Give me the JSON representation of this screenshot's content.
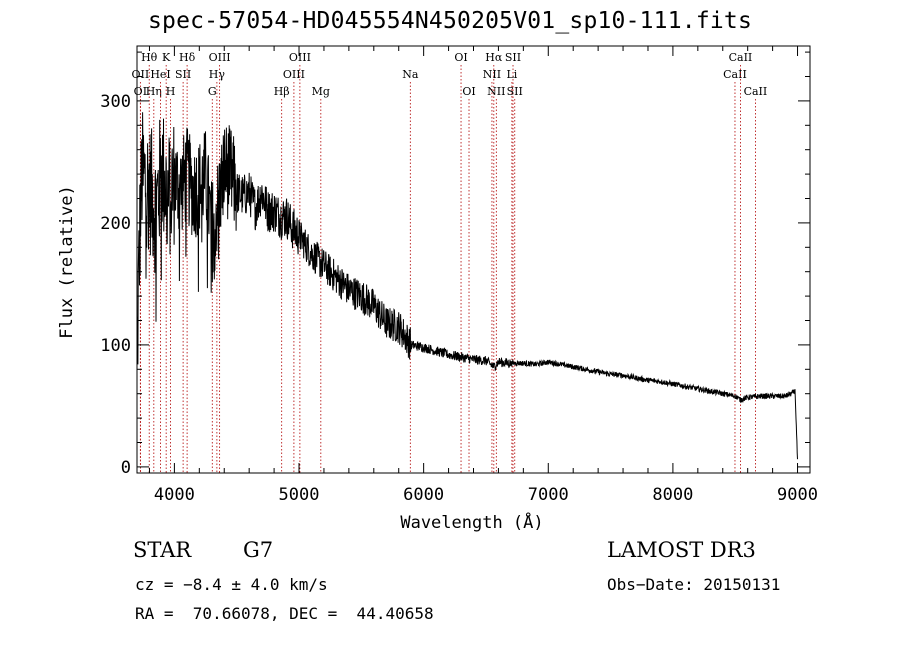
{
  "chart_data": {
    "type": "line",
    "title": "spec-57054-HD045554N450205V01_sp10-111.fits",
    "xlabel": "Wavelength (Å)",
    "ylabel": "Flux (relative)",
    "xlim": [
      3700,
      9100
    ],
    "ylim": [
      -5,
      345
    ],
    "xticks": [
      4000,
      5000,
      6000,
      7000,
      8000,
      9000
    ],
    "xtick_labels": [
      "4000",
      "5000",
      "6000",
      "7000",
      "8000",
      "9000"
    ],
    "yticks": [
      0,
      100,
      200,
      300
    ],
    "ytick_labels": [
      "0",
      "100",
      "200",
      "300"
    ],
    "series": [
      {
        "name": "flux",
        "x": [
          3700,
          3712,
          3725,
          3740,
          3760,
          3800,
          3850,
          3900,
          3950,
          4000,
          4050,
          4100,
          4150,
          4200,
          4250,
          4300,
          4350,
          4400,
          4450,
          4500,
          4550,
          4600,
          4650,
          4700,
          4750,
          4800,
          4850,
          4900,
          4950,
          5000,
          5100,
          5200,
          5300,
          5400,
          5500,
          5600,
          5700,
          5800,
          5900,
          6000,
          6100,
          6200,
          6300,
          6400,
          6500,
          6563,
          6600,
          6700,
          6800,
          6900,
          7000,
          7100,
          7200,
          7300,
          7400,
          7500,
          7600,
          7700,
          7800,
          7900,
          8000,
          8100,
          8200,
          8300,
          8400,
          8500,
          8542,
          8600,
          8700,
          8800,
          8900,
          8950,
          8980,
          9000
        ],
        "y": [
          70,
          150,
          200,
          240,
          235,
          230,
          210,
          245,
          220,
          235,
          228,
          240,
          225,
          230,
          238,
          195,
          215,
          245,
          240,
          225,
          222,
          225,
          212,
          225,
          210,
          210,
          205,
          205,
          195,
          190,
          175,
          165,
          155,
          145,
          140,
          132,
          118,
          115,
          100,
          98,
          95,
          92,
          90,
          88,
          87,
          82,
          86,
          85,
          85,
          84,
          86,
          84,
          82,
          80,
          78,
          76,
          75,
          73,
          71,
          70,
          68,
          66,
          64,
          62,
          60,
          58,
          55,
          57,
          58,
          58,
          58,
          60,
          62,
          5
        ]
      }
    ],
    "line_markers": [
      {
        "label": "OII",
        "wavelength": 3727,
        "row": 2
      },
      {
        "label": "Hθ",
        "wavelength": 3798,
        "row": 1
      },
      {
        "label": "OI",
        "wavelength": 3727,
        "row": 3
      },
      {
        "label": "Hη",
        "wavelength": 3835,
        "row": 3
      },
      {
        "label": "HeI",
        "wavelength": 3889,
        "row": 2
      },
      {
        "label": "K",
        "wavelength": 3934,
        "row": 1
      },
      {
        "label": "H",
        "wavelength": 3969,
        "row": 3
      },
      {
        "label": "SII",
        "wavelength": 4070,
        "row": 2
      },
      {
        "label": "Hδ",
        "wavelength": 4102,
        "row": 1
      },
      {
        "label": "OIII",
        "wavelength": 4363,
        "row": 1
      },
      {
        "label": "Hγ",
        "wavelength": 4341,
        "row": 2
      },
      {
        "label": "G",
        "wavelength": 4304,
        "row": 3
      },
      {
        "label": "Hβ",
        "wavelength": 4861,
        "row": 3
      },
      {
        "label": "OIII",
        "wavelength": 4959,
        "row": 2
      },
      {
        "label": "OIII",
        "wavelength": 5007,
        "row": 1
      },
      {
        "label": "Mg",
        "wavelength": 5175,
        "row": 3
      },
      {
        "label": "Na",
        "wavelength": 5893,
        "row": 2
      },
      {
        "label": "OI",
        "wavelength": 6300,
        "row": 1
      },
      {
        "label": "OI",
        "wavelength": 6364,
        "row": 3
      },
      {
        "label": "Hα",
        "wavelength": 6563,
        "row": 1
      },
      {
        "label": "NII",
        "wavelength": 6548,
        "row": 2
      },
      {
        "label": "NII",
        "wavelength": 6583,
        "row": 3
      },
      {
        "label": "SII",
        "wavelength": 6717,
        "row": 1
      },
      {
        "label": "Li",
        "wavelength": 6708,
        "row": 2
      },
      {
        "label": "SII",
        "wavelength": 6731,
        "row": 3
      },
      {
        "label": "CaII",
        "wavelength": 8498,
        "row": 2
      },
      {
        "label": "CaII",
        "wavelength": 8542,
        "row": 1
      },
      {
        "label": "CaII",
        "wavelength": 8662,
        "row": 3
      }
    ]
  },
  "info": {
    "object_class": "STAR",
    "subclass": "G7",
    "survey": "LAMOST DR3",
    "cz": "cz = −8.4 ± 4.0 km/s",
    "obs_date": "Obs−Date: 20150131",
    "radec": "RA =  70.66078, DEC =  44.40658"
  }
}
